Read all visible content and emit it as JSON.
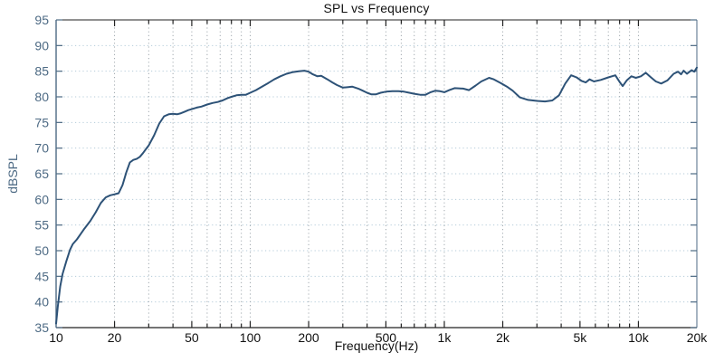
{
  "chart_data": {
    "type": "line",
    "title": "SPL vs Frequency",
    "xlabel": "Frequency(Hz)",
    "ylabel": "dBSPL",
    "x_scale": "log",
    "xlim": [
      10,
      20000
    ],
    "ylim": [
      35,
      95
    ],
    "grid": true,
    "legend": "none",
    "y_ticks": [
      35,
      40,
      45,
      50,
      55,
      60,
      65,
      70,
      75,
      80,
      85,
      90,
      95
    ],
    "x_ticks": [
      {
        "value": 10,
        "label": "10"
      },
      {
        "value": 20,
        "label": "20"
      },
      {
        "value": 50,
        "label": "50"
      },
      {
        "value": 100,
        "label": "100"
      },
      {
        "value": 200,
        "label": "200"
      },
      {
        "value": 500,
        "label": "500"
      },
      {
        "value": 1000,
        "label": "1k"
      },
      {
        "value": 2000,
        "label": "2k"
      },
      {
        "value": 5000,
        "label": "5k"
      },
      {
        "value": 10000,
        "label": "10k"
      },
      {
        "value": 20000,
        "label": "20k"
      }
    ],
    "x_gridlines": [
      20,
      30,
      40,
      50,
      60,
      70,
      80,
      90,
      100,
      200,
      300,
      400,
      500,
      600,
      700,
      800,
      900,
      1000,
      2000,
      3000,
      4000,
      5000,
      6000,
      7000,
      8000,
      9000,
      10000
    ],
    "colors": {
      "line": "#2d5277",
      "y_axis": "#4d6a84",
      "x_axis": "#222222",
      "h_grid": "#b4cbd9",
      "v_grid": "#a0a8ae",
      "x_text": "#111111"
    },
    "series": [
      {
        "name": "SPL",
        "points": [
          [
            10,
            35.8
          ],
          [
            10.2,
            39
          ],
          [
            10.5,
            43
          ],
          [
            10.8,
            45.5
          ],
          [
            11.3,
            48
          ],
          [
            11.8,
            50.2
          ],
          [
            12.2,
            51.3
          ],
          [
            12.8,
            52.2
          ],
          [
            13.4,
            53.3
          ],
          [
            14,
            54.3
          ],
          [
            15,
            55.8
          ],
          [
            16,
            57.5
          ],
          [
            17,
            59.3
          ],
          [
            18,
            60.4
          ],
          [
            19,
            60.8
          ],
          [
            20,
            61.0
          ],
          [
            21,
            61.2
          ],
          [
            22,
            62.8
          ],
          [
            23,
            65.3
          ],
          [
            24,
            67.2
          ],
          [
            25,
            67.7
          ],
          [
            26,
            67.9
          ],
          [
            27,
            68.3
          ],
          [
            28,
            69.0
          ],
          [
            29,
            69.8
          ],
          [
            30,
            70.5
          ],
          [
            32,
            72.5
          ],
          [
            34,
            74.8
          ],
          [
            36,
            76.2
          ],
          [
            38,
            76.6
          ],
          [
            40,
            76.7
          ],
          [
            42,
            76.6
          ],
          [
            44,
            76.8
          ],
          [
            46,
            77.1
          ],
          [
            48,
            77.4
          ],
          [
            50,
            77.6
          ],
          [
            53,
            77.9
          ],
          [
            56,
            78.1
          ],
          [
            60,
            78.5
          ],
          [
            64,
            78.8
          ],
          [
            68,
            79.0
          ],
          [
            72,
            79.3
          ],
          [
            76,
            79.7
          ],
          [
            80,
            80.0
          ],
          [
            85,
            80.3
          ],
          [
            90,
            80.4
          ],
          [
            95,
            80.4
          ],
          [
            100,
            80.8
          ],
          [
            107,
            81.3
          ],
          [
            115,
            82.0
          ],
          [
            124,
            82.7
          ],
          [
            133,
            83.4
          ],
          [
            143,
            84.0
          ],
          [
            154,
            84.5
          ],
          [
            165,
            84.8
          ],
          [
            178,
            85.0
          ],
          [
            190,
            85.1
          ],
          [
            200,
            84.9
          ],
          [
            210,
            84.4
          ],
          [
            222,
            84.0
          ],
          [
            232,
            84.1
          ],
          [
            250,
            83.4
          ],
          [
            265,
            82.8
          ],
          [
            280,
            82.3
          ],
          [
            300,
            81.8
          ],
          [
            320,
            81.9
          ],
          [
            335,
            82.0
          ],
          [
            360,
            81.6
          ],
          [
            380,
            81.2
          ],
          [
            400,
            80.8
          ],
          [
            420,
            80.5
          ],
          [
            445,
            80.5
          ],
          [
            470,
            80.8
          ],
          [
            500,
            81.0
          ],
          [
            540,
            81.1
          ],
          [
            580,
            81.1
          ],
          [
            620,
            81.0
          ],
          [
            660,
            80.8
          ],
          [
            700,
            80.6
          ],
          [
            750,
            80.4
          ],
          [
            800,
            80.4
          ],
          [
            850,
            80.9
          ],
          [
            900,
            81.2
          ],
          [
            950,
            81.1
          ],
          [
            1000,
            80.9
          ],
          [
            1060,
            81.3
          ],
          [
            1130,
            81.7
          ],
          [
            1250,
            81.6
          ],
          [
            1340,
            81.3
          ],
          [
            1450,
            82.2
          ],
          [
            1550,
            83.0
          ],
          [
            1700,
            83.7
          ],
          [
            1800,
            83.4
          ],
          [
            1950,
            82.7
          ],
          [
            2100,
            82.0
          ],
          [
            2250,
            81.2
          ],
          [
            2450,
            79.9
          ],
          [
            2700,
            79.4
          ],
          [
            3000,
            79.2
          ],
          [
            3300,
            79.1
          ],
          [
            3600,
            79.3
          ],
          [
            3900,
            80.3
          ],
          [
            4200,
            82.6
          ],
          [
            4500,
            84.2
          ],
          [
            4800,
            83.8
          ],
          [
            5100,
            83.1
          ],
          [
            5350,
            82.8
          ],
          [
            5600,
            83.4
          ],
          [
            5900,
            83.0
          ],
          [
            6400,
            83.3
          ],
          [
            7000,
            83.8
          ],
          [
            7600,
            84.2
          ],
          [
            8000,
            82.9
          ],
          [
            8300,
            82.1
          ],
          [
            8700,
            83.2
          ],
          [
            9200,
            84.0
          ],
          [
            9700,
            83.7
          ],
          [
            10300,
            84.0
          ],
          [
            10900,
            84.7
          ],
          [
            11600,
            83.8
          ],
          [
            12300,
            83.0
          ],
          [
            13100,
            82.6
          ],
          [
            14100,
            83.2
          ],
          [
            15200,
            84.5
          ],
          [
            16000,
            84.9
          ],
          [
            16600,
            84.4
          ],
          [
            17100,
            85.1
          ],
          [
            17800,
            84.5
          ],
          [
            18800,
            85.2
          ],
          [
            19400,
            84.9
          ],
          [
            20000,
            85.7
          ]
        ]
      }
    ]
  }
}
